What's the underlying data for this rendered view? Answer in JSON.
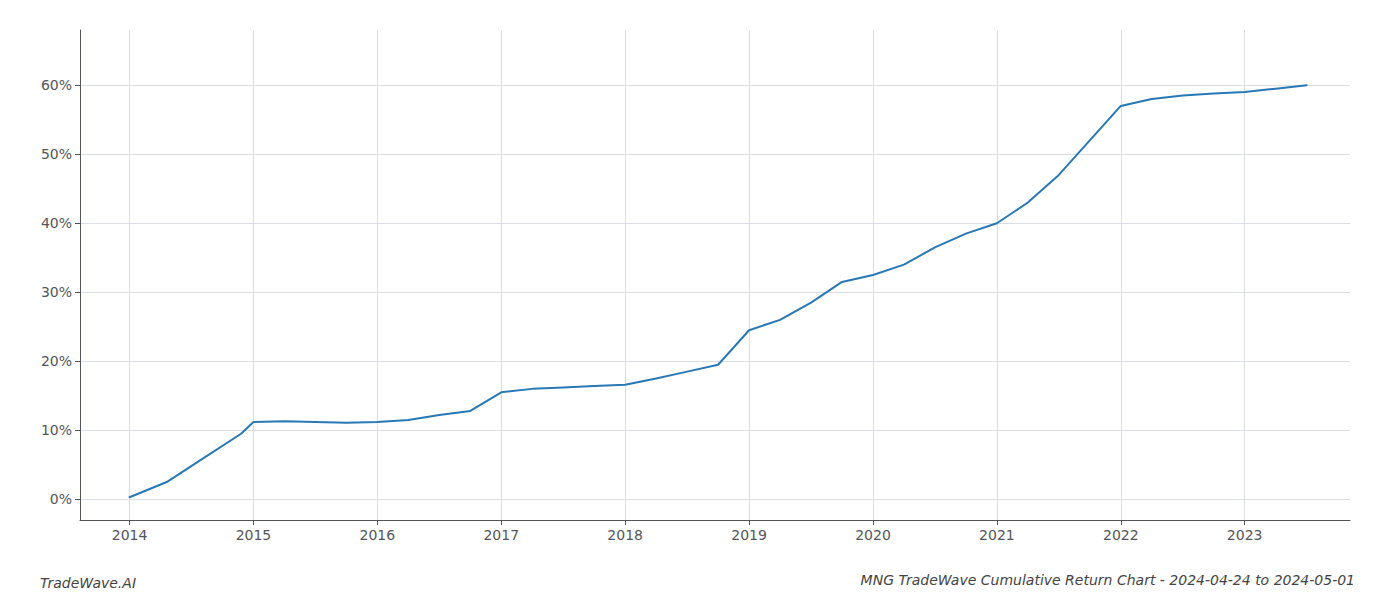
{
  "chart_data": {
    "type": "line",
    "title": "MNG TradeWave Cumulative Return Chart - 2024-04-24 to 2024-05-01",
    "annotations": [
      "TradeWave.AI"
    ],
    "x": [
      2014.0,
      2014.3,
      2014.6,
      2014.9,
      2015.0,
      2015.25,
      2015.5,
      2015.75,
      2016.0,
      2016.25,
      2016.5,
      2016.75,
      2017.0,
      2017.25,
      2017.5,
      2017.75,
      2018.0,
      2018.25,
      2018.5,
      2018.75,
      2019.0,
      2019.25,
      2019.5,
      2019.75,
      2020.0,
      2020.25,
      2020.5,
      2020.75,
      2021.0,
      2021.25,
      2021.5,
      2021.75,
      2022.0,
      2022.25,
      2022.5,
      2022.75,
      2023.0,
      2023.25,
      2023.5
    ],
    "values": [
      0.3,
      2.5,
      6.0,
      9.5,
      11.2,
      11.3,
      11.2,
      11.1,
      11.2,
      11.5,
      12.2,
      12.8,
      15.5,
      16.0,
      16.2,
      16.4,
      16.6,
      17.5,
      18.5,
      19.5,
      24.5,
      26.0,
      28.5,
      31.5,
      32.5,
      34.0,
      36.5,
      38.5,
      40.0,
      43.0,
      47.0,
      52.0,
      57.0,
      58.0,
      58.5,
      58.8,
      59.0,
      59.5,
      60.0
    ],
    "color": "#2878b5",
    "xlim": [
      2013.6,
      2023.85
    ],
    "ylim": [
      -3,
      68
    ],
    "xticks": [
      2014,
      2015,
      2016,
      2017,
      2018,
      2019,
      2020,
      2021,
      2022,
      2023
    ],
    "yticks": [
      {
        "value": 0,
        "label": "0%"
      },
      {
        "value": 10,
        "label": "10%"
      },
      {
        "value": 20,
        "label": "20%"
      },
      {
        "value": 30,
        "label": "30%"
      },
      {
        "value": 40,
        "label": "40%"
      },
      {
        "value": 50,
        "label": "50%"
      },
      {
        "value": 60,
        "label": "60%"
      }
    ],
    "grid": true
  }
}
